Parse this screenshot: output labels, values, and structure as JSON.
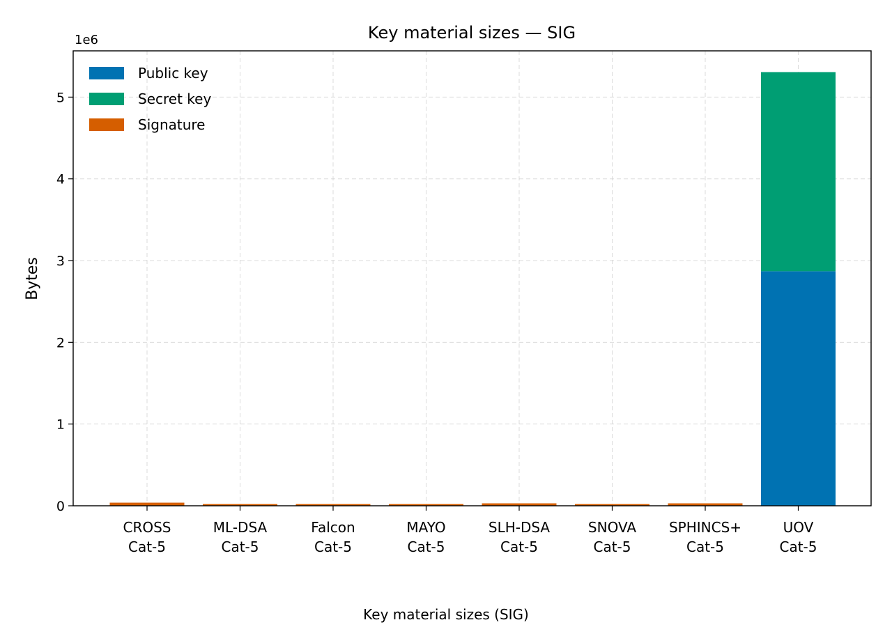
{
  "chart_data": {
    "type": "bar",
    "stacked": true,
    "title": "Key material sizes — SIG",
    "xlabel": "Key material sizes (SIG)",
    "ylabel": "Bytes",
    "y_offset_label": "1e6",
    "y_scale": 1000000,
    "ylim": [
      0,
      5566000
    ],
    "yticks": [
      "0",
      "1",
      "2",
      "3",
      "4",
      "5"
    ],
    "grid": true,
    "legend_placement": "top-left",
    "categories": [
      [
        "CROSS",
        "Cat-5"
      ],
      [
        "ML-DSA",
        "Cat-5"
      ],
      [
        "Falcon",
        "Cat-5"
      ],
      [
        "MAYO",
        "Cat-5"
      ],
      [
        "SLH-DSA",
        "Cat-5"
      ],
      [
        "SNOVA",
        "Cat-5"
      ],
      [
        "SPHINCS+",
        "Cat-5"
      ],
      [
        "UOV",
        "Cat-5"
      ]
    ],
    "series": [
      {
        "name": "Public key",
        "color": "#0072b2",
        "values": [
          0,
          0,
          0,
          0,
          0,
          0,
          0,
          2869440
        ]
      },
      {
        "name": "Secret key",
        "color": "#009e73",
        "values": [
          0,
          0,
          0,
          0,
          0,
          0,
          0,
          2436704
        ]
      },
      {
        "name": "Signature",
        "color": "#d55e00",
        "values": [
          38000,
          4627,
          1280,
          964,
          29792,
          2000,
          29792,
          96
        ]
      }
    ]
  }
}
